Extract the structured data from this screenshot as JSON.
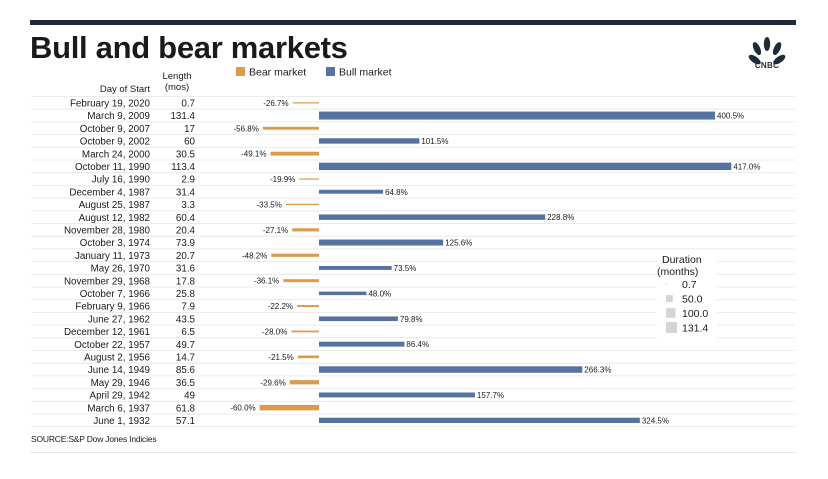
{
  "header": {
    "title": "Bull and bear markets",
    "logo_text": "CNBC",
    "top_label": ""
  },
  "footer": {
    "source": "SOURCE:S&P Dow Jones Indicies"
  },
  "colors": {
    "bear": "#dc9a4c",
    "bull": "#5673a0",
    "topbar": "#1f2b3a",
    "text": "#1a1a1a",
    "gridline": "#e5e5e5"
  },
  "chart_data": {
    "type": "bar",
    "title": "Bull and bear markets",
    "column_headers": {
      "date": "Day of Start",
      "length": "Length\n(mos)"
    },
    "legend": {
      "position": "top",
      "entries": [
        {
          "name": "Bear market",
          "color": "#dc9a4c"
        },
        {
          "name": "Bull market",
          "color": "#5673a0"
        }
      ]
    },
    "duration_legend": {
      "title": "Duration\n(months)",
      "values": [
        "0.7",
        "50.0",
        "100.0",
        "131.4"
      ],
      "amounts": [
        0.7,
        50,
        100,
        131.4
      ]
    },
    "xlim": [
      -60,
      417
    ],
    "rows": [
      {
        "date": "February 19, 2020",
        "length": "0.7",
        "length_num": 0.7,
        "type": "bear",
        "value": -26.7,
        "label": "-26.7%"
      },
      {
        "date": "March 9, 2009",
        "length": "131.4",
        "length_num": 131.4,
        "type": "bull",
        "value": 400.5,
        "label": "400.5%"
      },
      {
        "date": "October 9, 2007",
        "length": "17",
        "length_num": 17,
        "type": "bear",
        "value": -56.8,
        "label": "-56.8%"
      },
      {
        "date": "October 9, 2002",
        "length": "60",
        "length_num": 60,
        "type": "bull",
        "value": 101.5,
        "label": "101.5%"
      },
      {
        "date": "March 24, 2000",
        "length": "30.5",
        "length_num": 30.5,
        "type": "bear",
        "value": -49.1,
        "label": "-49.1%"
      },
      {
        "date": "October 11, 1990",
        "length": "113.4",
        "length_num": 113.4,
        "type": "bull",
        "value": 417.0,
        "label": "417.0%"
      },
      {
        "date": "July 16, 1990",
        "length": "2.9",
        "length_num": 2.9,
        "type": "bear",
        "value": -19.9,
        "label": "-19.9%"
      },
      {
        "date": "December 4, 1987",
        "length": "31.4",
        "length_num": 31.4,
        "type": "bull",
        "value": 64.8,
        "label": "64.8%"
      },
      {
        "date": "August 25, 1987",
        "length": "3.3",
        "length_num": 3.3,
        "type": "bear",
        "value": -33.5,
        "label": "-33.5%"
      },
      {
        "date": "August 12, 1982",
        "length": "60.4",
        "length_num": 60.4,
        "type": "bull",
        "value": 228.8,
        "label": "228.8%"
      },
      {
        "date": "November 28, 1980",
        "length": "20.4",
        "length_num": 20.4,
        "type": "bear",
        "value": -27.1,
        "label": "-27.1%"
      },
      {
        "date": "October 3, 1974",
        "length": "73.9",
        "length_num": 73.9,
        "type": "bull",
        "value": 125.6,
        "label": "125.6%"
      },
      {
        "date": "January 11, 1973",
        "length": "20.7",
        "length_num": 20.7,
        "type": "bear",
        "value": -48.2,
        "label": "-48.2%"
      },
      {
        "date": "May 26, 1970",
        "length": "31.6",
        "length_num": 31.6,
        "type": "bull",
        "value": 73.5,
        "label": "73.5%"
      },
      {
        "date": "November 29, 1968",
        "length": "17.8",
        "length_num": 17.8,
        "type": "bear",
        "value": -36.1,
        "label": "-36.1%"
      },
      {
        "date": "October 7, 1966",
        "length": "25.8",
        "length_num": 25.8,
        "type": "bull",
        "value": 48.0,
        "label": "48.0%"
      },
      {
        "date": "February 9, 1966",
        "length": "7.9",
        "length_num": 7.9,
        "type": "bear",
        "value": -22.2,
        "label": "-22.2%"
      },
      {
        "date": "June 27, 1962",
        "length": "43.5",
        "length_num": 43.5,
        "type": "bull",
        "value": 79.8,
        "label": "79.8%"
      },
      {
        "date": "December 12, 1961",
        "length": "6.5",
        "length_num": 6.5,
        "type": "bear",
        "value": -28.0,
        "label": "-28.0%"
      },
      {
        "date": "October 22, 1957",
        "length": "49.7",
        "length_num": 49.7,
        "type": "bull",
        "value": 86.4,
        "label": "86.4%"
      },
      {
        "date": "August 2, 1956",
        "length": "14.7",
        "length_num": 14.7,
        "type": "bear",
        "value": -21.5,
        "label": "-21.5%"
      },
      {
        "date": "June 14, 1949",
        "length": "85.6",
        "length_num": 85.6,
        "type": "bull",
        "value": 266.3,
        "label": "266.3%"
      },
      {
        "date": "May 29, 1946",
        "length": "36.5",
        "length_num": 36.5,
        "type": "bear",
        "value": -29.6,
        "label": "-29.6%"
      },
      {
        "date": "April 29, 1942",
        "length": "49",
        "length_num": 49,
        "type": "bull",
        "value": 157.7,
        "label": "157.7%"
      },
      {
        "date": "March 6, 1937",
        "length": "61.8",
        "length_num": 61.8,
        "type": "bear",
        "value": -60.0,
        "label": "-60.0%"
      },
      {
        "date": "June 1, 1932",
        "length": "57.1",
        "length_num": 57.1,
        "type": "bull",
        "value": 324.5,
        "label": "324.5%"
      }
    ]
  }
}
